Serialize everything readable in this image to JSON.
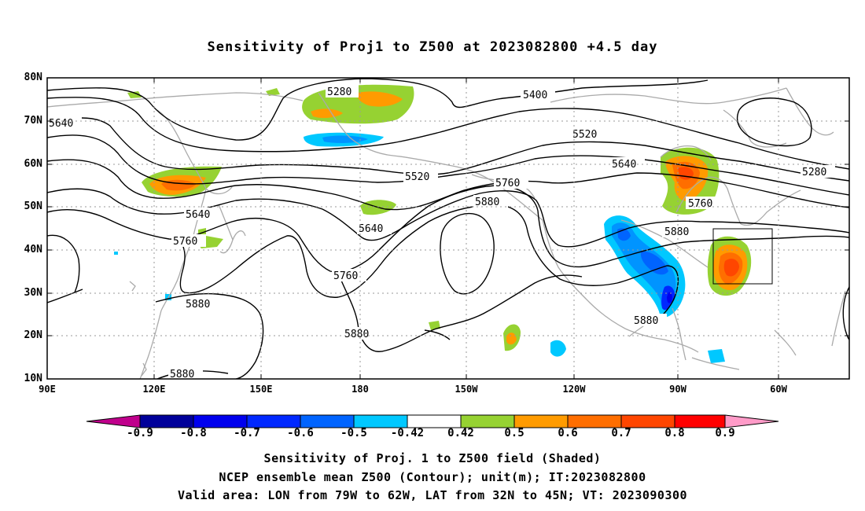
{
  "title": "Sensitivity of Proj1 to Z500 at 2023082800 +4.5 day",
  "lat_labels": [
    "80N",
    "70N",
    "60N",
    "50N",
    "40N",
    "30N",
    "20N",
    "10N"
  ],
  "lon_labels": [
    "90E",
    "120E",
    "150E",
    "180",
    "150W",
    "120W",
    "90W",
    "60W"
  ],
  "contour_labels": [
    "5280",
    "5400",
    "5640",
    "5520",
    "5520",
    "5640",
    "5280",
    "5760",
    "5880",
    "5640",
    "5640",
    "5760",
    "5760",
    "5880",
    "5760",
    "5880",
    "5880",
    "5880",
    "5880"
  ],
  "colorbar": {
    "labels": [
      "-0.9",
      "-0.8",
      "-0.7",
      "-0.6",
      "-0.5",
      "-0.42",
      "0.42",
      "0.5",
      "0.6",
      "0.7",
      "0.8",
      "0.9"
    ],
    "colors": [
      "#c0008c",
      "#00009a",
      "#0000ee",
      "#0028ff",
      "#0064ff",
      "#0094ff",
      "#00c8ff",
      "#ffffff",
      "#96d232",
      "#ff9b00",
      "#ff6e00",
      "#ff4600",
      "#ff0000",
      "#ff9bc8"
    ]
  },
  "captions": [
    "Sensitivity of Proj. 1 to Z500 field (Shaded)",
    "NCEP ensemble mean Z500 (Contour); unit(m); IT:2023082800",
    "Valid area: LON from 79W to 62W, LAT from 32N to 45N; VT: 2023090300"
  ]
}
